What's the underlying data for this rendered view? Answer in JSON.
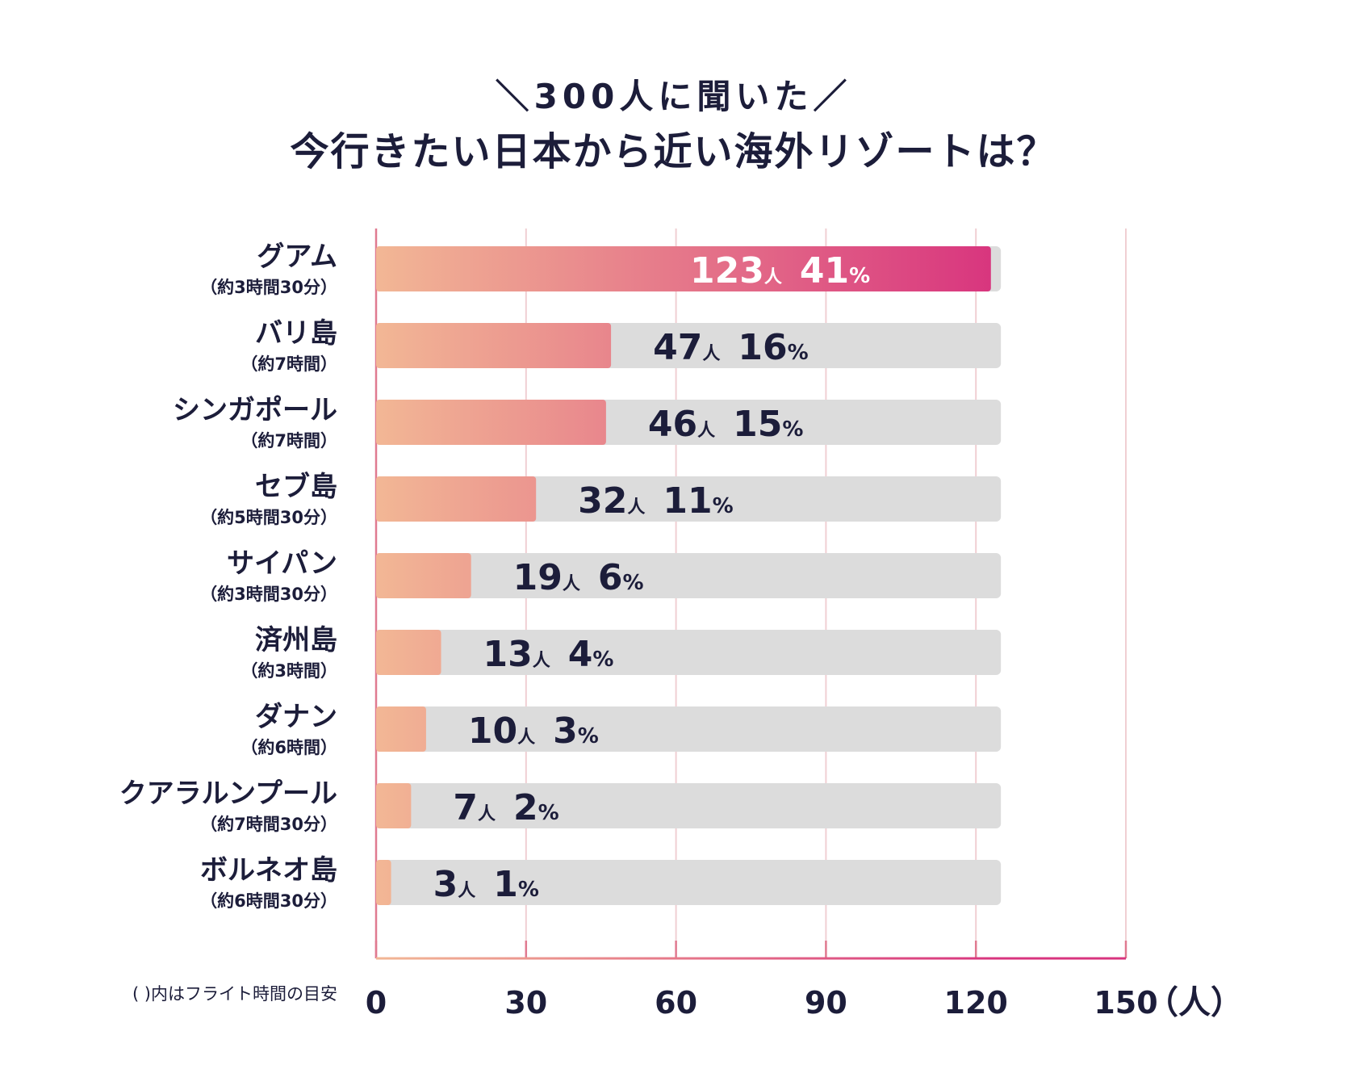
{
  "chart_data": {
    "type": "bar",
    "orientation": "horizontal",
    "subtitle": "＼300人に聞いた／",
    "title": "今行きたい日本から近い海外リゾートは？",
    "unit_count": "人",
    "unit_percent": "%",
    "xlim": [
      0,
      150
    ],
    "xticks": [
      "0",
      "30",
      "60",
      "90",
      "120",
      "150"
    ],
    "xlabel": "（人）",
    "track_max": 125,
    "footnote": "( )内はフライト時間の目安",
    "categories": [
      {
        "name": "グアム",
        "note": "（約3時間30分）",
        "value": 123,
        "percent": 41
      },
      {
        "name": "バリ島",
        "note": "（約7時間）",
        "value": 47,
        "percent": 16
      },
      {
        "name": "シンガポール",
        "note": "（約7時間）",
        "value": 46,
        "percent": 15
      },
      {
        "name": "セブ島",
        "note": "（約5時間30分）",
        "value": 32,
        "percent": 11
      },
      {
        "name": "サイパン",
        "note": "（約3時間30分）",
        "value": 19,
        "percent": 6
      },
      {
        "name": "済州島",
        "note": "（約3時間）",
        "value": 13,
        "percent": 4
      },
      {
        "name": "ダナン",
        "note": "（約6時間）",
        "value": 10,
        "percent": 3
      },
      {
        "name": "クアラルンプール",
        "note": "（約7時間30分）",
        "value": 7,
        "percent": 2
      },
      {
        "name": "ボルネオ島",
        "note": "（約6時間30分）",
        "value": 3,
        "percent": 1
      }
    ],
    "colors": {
      "gradient_start": "#f2b795",
      "gradient_end": "#d8347e",
      "track": "#dcdcdc",
      "grid": "#f0cfd3",
      "axis": "#e07a90",
      "text": "#1c1d3a",
      "label_on_bar": "#ffffff"
    }
  }
}
